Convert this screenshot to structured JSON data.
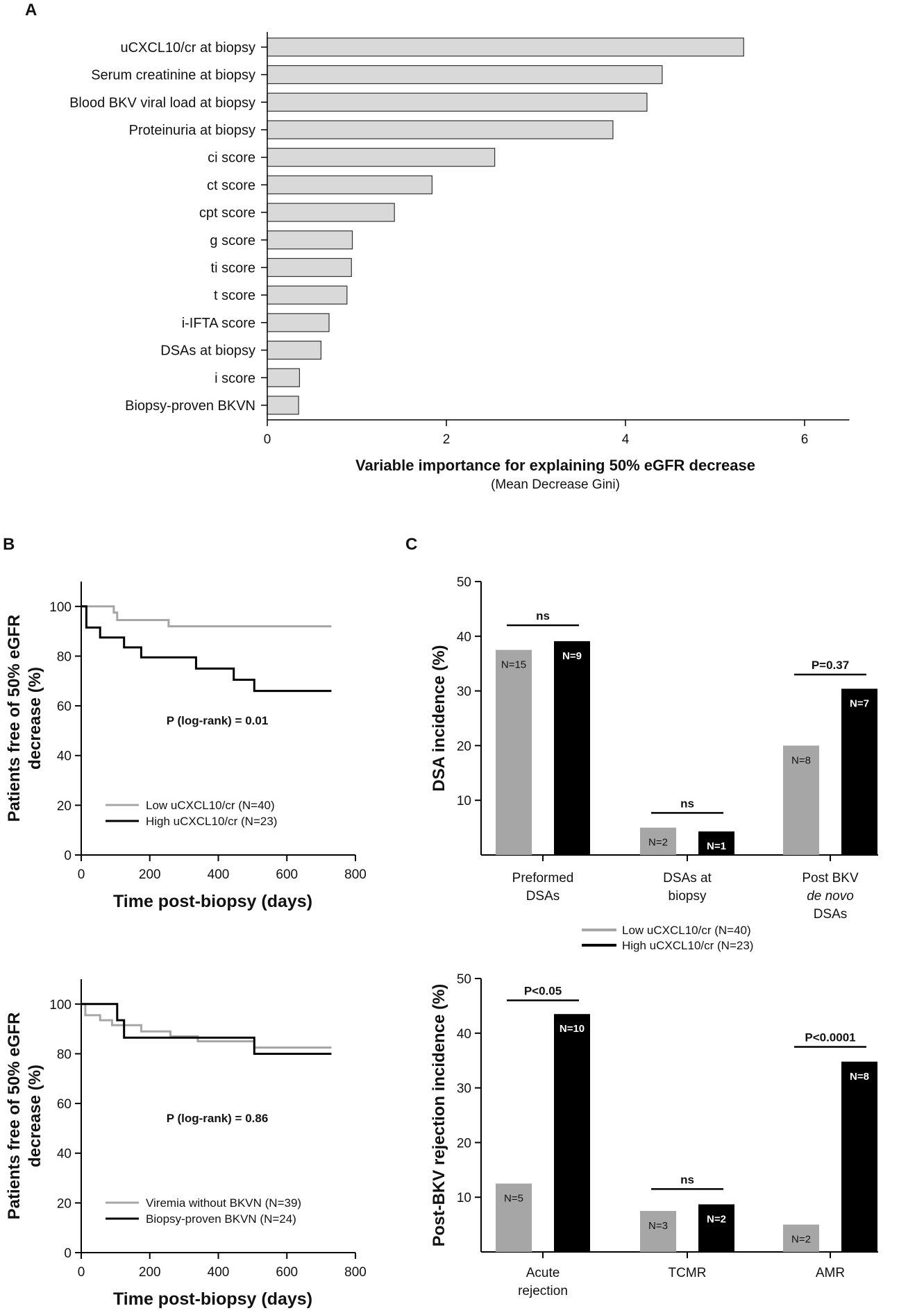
{
  "panels": {
    "A": "A",
    "B": "B",
    "C": "C"
  },
  "colors": {
    "grey_bar": "#d9d9d9",
    "grey_line": "#a6a6a6",
    "black": "#000000",
    "grey_col": "#a6a6a6"
  },
  "chart_data": [
    {
      "type": "bar",
      "orientation": "horizontal",
      "panel": "A",
      "categories": [
        "uCXCL10/cr at biopsy",
        "Serum creatinine at biopsy",
        "Blood BKV viral load at biopsy",
        "Proteinuria at biopsy",
        "ci score",
        "ct score",
        "cpt score",
        "g score",
        "ti score",
        "t score",
        "i-IFTA score",
        "DSAs at biopsy",
        "i score",
        "Biopsy-proven BKVN"
      ],
      "values": [
        5.32,
        4.41,
        4.24,
        3.86,
        2.54,
        1.84,
        1.42,
        0.95,
        0.94,
        0.89,
        0.69,
        0.6,
        0.36,
        0.35
      ],
      "xlim": [
        0,
        6.5
      ],
      "xticks": [
        0,
        2,
        4,
        6
      ],
      "xticklabels": [
        "0",
        "2",
        "4",
        "6"
      ],
      "xlabel": "Variable importance for explaining 50% eGFR decrease",
      "xlabel_sub": "(Mean Decrease Gini)"
    },
    {
      "type": "line",
      "subtype": "kaplan-meier",
      "panel": "B-top",
      "xlim": [
        0,
        800
      ],
      "ylim": [
        0,
        110
      ],
      "xticks": [
        0,
        200,
        400,
        600,
        800
      ],
      "xticklabels": [
        "0",
        "200",
        "400",
        "600",
        "800"
      ],
      "yticks": [
        0,
        20,
        40,
        60,
        80,
        100
      ],
      "yticklabels": [
        "0",
        "20",
        "40",
        "60",
        "80",
        "100"
      ],
      "xlabel": "Time post-biopsy (days)",
      "ylabel_line1": "Patients free of 50% eGFR",
      "ylabel_line2": "decrease (%)",
      "annotation": "P (log-rank) = 0.01",
      "series": [
        {
          "name": "Low uCXCL10/cr (N=40)",
          "color": "#a6a6a6",
          "steps": [
            [
              0,
              100
            ],
            [
              95,
              100
            ],
            [
              95,
              97.5
            ],
            [
              105,
              97.5
            ],
            [
              105,
              94.5
            ],
            [
              255,
              94.5
            ],
            [
              255,
              92
            ],
            [
              730,
              92
            ]
          ]
        },
        {
          "name": "High uCXCL10/cr (N=23)",
          "color": "#000000",
          "steps": [
            [
              0,
              100
            ],
            [
              15,
              100
            ],
            [
              15,
              91.5
            ],
            [
              55,
              91.5
            ],
            [
              55,
              87.5
            ],
            [
              125,
              87.5
            ],
            [
              125,
              83.5
            ],
            [
              175,
              83.5
            ],
            [
              175,
              79.5
            ],
            [
              335,
              79.5
            ],
            [
              335,
              75
            ],
            [
              445,
              75
            ],
            [
              445,
              70.5
            ],
            [
              505,
              70.5
            ],
            [
              505,
              66
            ],
            [
              730,
              66
            ]
          ]
        }
      ]
    },
    {
      "type": "line",
      "subtype": "kaplan-meier",
      "panel": "B-bottom",
      "xlim": [
        0,
        800
      ],
      "ylim": [
        0,
        110
      ],
      "xticks": [
        0,
        200,
        400,
        600,
        800
      ],
      "xticklabels": [
        "0",
        "200",
        "400",
        "600",
        "800"
      ],
      "yticks": [
        0,
        20,
        40,
        60,
        80,
        100
      ],
      "yticklabels": [
        "0",
        "20",
        "40",
        "60",
        "80",
        "100"
      ],
      "xlabel": "Time post-biopsy (days)",
      "ylabel_line1": "Patients free of 50% eGFR",
      "ylabel_line2": "decrease (%)",
      "annotation": "P (log-rank) = 0.86",
      "series": [
        {
          "name": "Viremia without BKVN (N=39)",
          "color": "#a6a6a6",
          "steps": [
            [
              0,
              100
            ],
            [
              12,
              100
            ],
            [
              12,
              95.5
            ],
            [
              55,
              95.5
            ],
            [
              55,
              93.5
            ],
            [
              90,
              93.5
            ],
            [
              90,
              91.5
            ],
            [
              175,
              91.5
            ],
            [
              175,
              89
            ],
            [
              260,
              89
            ],
            [
              260,
              87
            ],
            [
              340,
              87
            ],
            [
              340,
              85
            ],
            [
              505,
              85
            ],
            [
              505,
              82.5
            ],
            [
              730,
              82.5
            ]
          ]
        },
        {
          "name": "Biopsy-proven BKVN (N=24)",
          "color": "#000000",
          "steps": [
            [
              0,
              100
            ],
            [
              105,
              100
            ],
            [
              105,
              93.5
            ],
            [
              125,
              93.5
            ],
            [
              125,
              86.5
            ],
            [
              505,
              86.5
            ],
            [
              505,
              80
            ],
            [
              730,
              80
            ]
          ]
        }
      ]
    },
    {
      "type": "bar",
      "panel": "C-top",
      "categories": [
        [
          "Preformed",
          "DSAs"
        ],
        [
          "DSAs at",
          "biopsy"
        ],
        [
          "Post BKV",
          "de novo",
          "DSAs"
        ]
      ],
      "categories_italic_line": [
        null,
        null,
        1
      ],
      "series": [
        {
          "name": "Low uCXCL10/cr (N=40)",
          "color": "#a6a6a6",
          "values": [
            37.5,
            5.0,
            20.0
          ],
          "labels": [
            "N=15",
            "N=2",
            "N=8"
          ]
        },
        {
          "name": "High uCXCL10/cr (N=23)",
          "color": "#000000",
          "values": [
            39.1,
            4.3,
            30.4
          ],
          "labels": [
            "N=9",
            "N=1",
            "N=7"
          ]
        }
      ],
      "ylim": [
        0,
        50
      ],
      "yticks": [
        10,
        20,
        30,
        40,
        50
      ],
      "yticklabels": [
        "10",
        "20",
        "30",
        "40",
        "50"
      ],
      "ylabel": "DSA incidence (%)",
      "significance": [
        {
          "label": "ns",
          "group": 0,
          "y": 42
        },
        {
          "label": "ns",
          "group": 1,
          "y": 7.7
        },
        {
          "label": "P=0.37",
          "group": 2,
          "y": 33
        }
      ]
    },
    {
      "type": "bar",
      "panel": "C-bottom",
      "categories": [
        [
          "Acute",
          "rejection"
        ],
        [
          "TCMR"
        ],
        [
          "AMR"
        ]
      ],
      "categories_italic_line": [
        null,
        null,
        null
      ],
      "series": [
        {
          "name": "Low uCXCL10/cr (N=40)",
          "color": "#a6a6a6",
          "values": [
            12.5,
            7.5,
            5.0
          ],
          "labels": [
            "N=5",
            "N=3",
            "N=2"
          ]
        },
        {
          "name": "High uCXCL10/cr (N=23)",
          "color": "#000000",
          "values": [
            43.5,
            8.7,
            34.8
          ],
          "labels": [
            "N=10",
            "N=2",
            "N=8"
          ]
        }
      ],
      "ylim": [
        0,
        50
      ],
      "yticks": [
        10,
        20,
        30,
        40,
        50
      ],
      "yticklabels": [
        "10",
        "20",
        "30",
        "40",
        "50"
      ],
      "ylabel": "Post-BKV rejection incidence (%)",
      "significance": [
        {
          "label": "P<0.05",
          "group": 0,
          "y": 46
        },
        {
          "label": "ns",
          "group": 1,
          "y": 11.5
        },
        {
          "label": "P<0.0001",
          "group": 2,
          "y": 37.5
        }
      ]
    }
  ]
}
